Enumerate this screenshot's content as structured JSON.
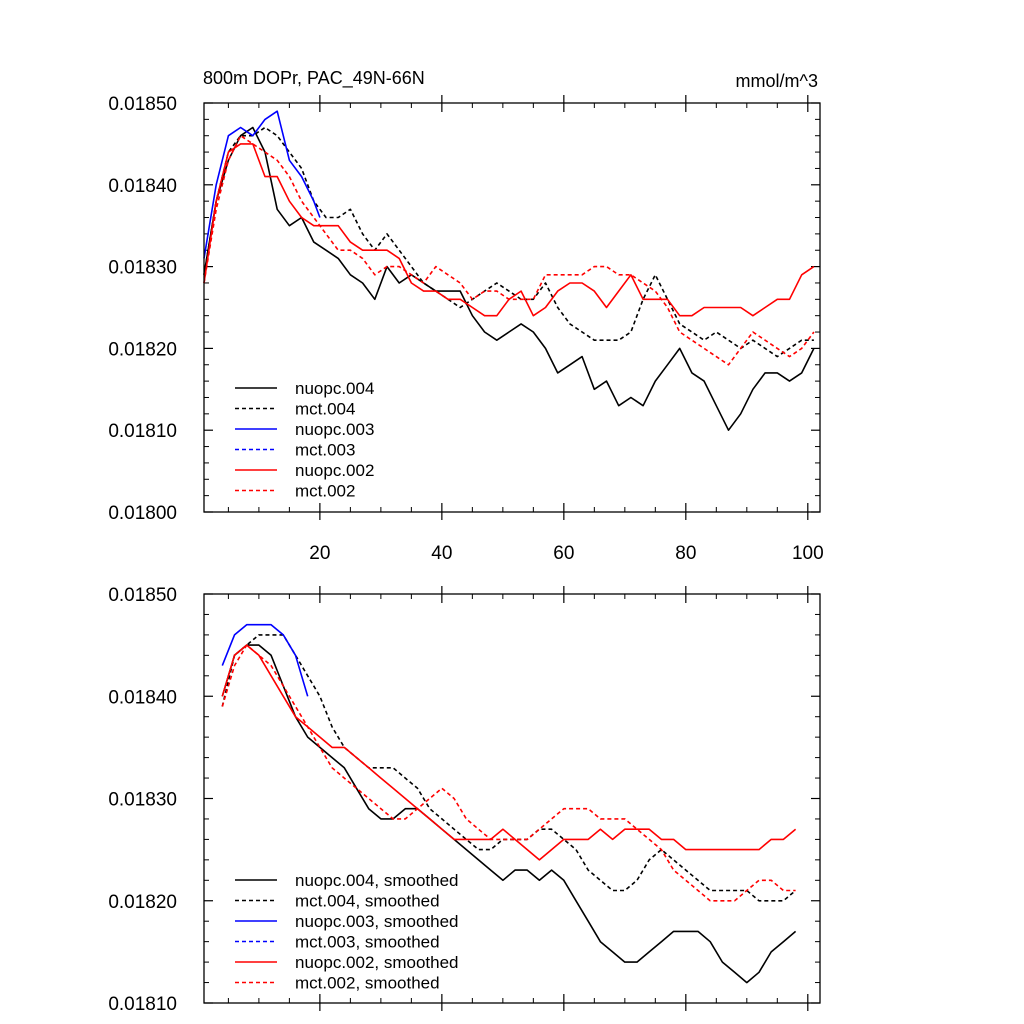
{
  "chart_data": [
    {
      "type": "line",
      "title": "800m DOPr, PAC_49N-66N",
      "units": "mmol/m^3",
      "xlim": [
        1,
        102
      ],
      "ylim": [
        0.018,
        0.0185
      ],
      "x_tick_labels": [
        "20",
        "40",
        "60",
        "80",
        "100"
      ],
      "y_tick_labels": [
        "0.01800",
        "0.01810",
        "0.01820",
        "0.01830",
        "0.01840",
        "0.01850"
      ],
      "series": [
        {
          "name": "nuopc.004",
          "color": "#000000",
          "dash": false,
          "x": [
            1,
            3,
            5,
            7,
            9,
            11,
            13,
            15,
            17,
            19,
            21,
            23,
            25,
            27,
            29,
            31,
            33,
            35,
            37,
            39,
            41,
            43,
            45,
            47,
            49,
            51,
            53,
            55,
            57,
            59,
            61,
            63,
            65,
            67,
            69,
            71,
            73,
            75,
            77,
            79,
            81,
            83,
            85,
            87,
            89,
            91,
            93,
            95,
            97,
            99,
            101
          ],
          "y": [
            0.01829,
            0.01838,
            0.01843,
            0.01846,
            0.01847,
            0.01844,
            0.01837,
            0.01835,
            0.01836,
            0.01833,
            0.01832,
            0.01831,
            0.01829,
            0.01828,
            0.01826,
            0.0183,
            0.01828,
            0.01829,
            0.01828,
            0.01827,
            0.01827,
            0.01827,
            0.01824,
            0.01822,
            0.01821,
            0.01822,
            0.01823,
            0.01822,
            0.0182,
            0.01817,
            0.01818,
            0.01819,
            0.01815,
            0.01816,
            0.01813,
            0.01814,
            0.01813,
            0.01816,
            0.01818,
            0.0182,
            0.01817,
            0.01816,
            0.01813,
            0.0181,
            0.01812,
            0.01815,
            0.01817,
            0.01817,
            0.01816,
            0.01817,
            0.0182
          ]
        },
        {
          "name": "mct.004",
          "color": "#000000",
          "dash": true,
          "x": [
            1,
            3,
            5,
            7,
            9,
            11,
            13,
            15,
            17,
            19,
            21,
            23,
            25,
            27,
            29,
            31,
            33,
            35,
            37,
            39,
            41,
            43,
            45,
            47,
            49,
            51,
            53,
            55,
            57,
            59,
            61,
            63,
            65,
            67,
            69,
            71,
            73,
            75,
            77,
            79,
            81,
            83,
            85,
            87,
            89,
            91,
            93,
            95,
            97,
            99,
            101
          ],
          "y": [
            0.01829,
            0.01838,
            0.01844,
            0.01846,
            0.01846,
            0.01847,
            0.01846,
            0.01844,
            0.01842,
            0.01838,
            0.01836,
            0.01836,
            0.01837,
            0.01834,
            0.01832,
            0.01834,
            0.01832,
            0.0183,
            0.01828,
            0.01827,
            0.01826,
            0.01825,
            0.01826,
            0.01827,
            0.01828,
            0.01827,
            0.01826,
            0.01826,
            0.01828,
            0.01825,
            0.01823,
            0.01822,
            0.01821,
            0.01821,
            0.01821,
            0.01822,
            0.01826,
            0.01829,
            0.01826,
            0.01823,
            0.01822,
            0.01821,
            0.01822,
            0.01821,
            0.0182,
            0.01821,
            0.0182,
            0.01819,
            0.0182,
            0.01821,
            0.01821
          ]
        },
        {
          "name": "nuopc.003",
          "color": "#0000ff",
          "dash": false,
          "x": [
            1,
            3,
            5,
            7,
            9,
            11,
            13,
            15,
            17,
            19,
            20
          ],
          "y": [
            0.01831,
            0.0184,
            0.01846,
            0.01847,
            0.01846,
            0.01848,
            0.01849,
            0.01843,
            0.01841,
            0.01838,
            0.01836
          ]
        },
        {
          "name": "mct.003",
          "color": "#0000ff",
          "dash": true,
          "x": [],
          "y": []
        },
        {
          "name": "nuopc.002",
          "color": "#ff0000",
          "dash": false,
          "x": [
            1,
            3,
            5,
            7,
            9,
            11,
            13,
            15,
            17,
            19,
            21,
            23,
            25,
            27,
            29,
            31,
            33,
            35,
            37,
            39,
            41,
            43,
            45,
            47,
            49,
            51,
            53,
            55,
            57,
            59,
            61,
            63,
            65,
            67,
            69,
            71,
            73,
            75,
            77,
            79,
            81,
            83,
            85,
            87,
            89,
            91,
            93,
            95,
            97,
            99,
            101
          ],
          "y": [
            0.01828,
            0.01838,
            0.01844,
            0.01845,
            0.01845,
            0.01841,
            0.01841,
            0.01838,
            0.01836,
            0.01835,
            0.01835,
            0.01835,
            0.01833,
            0.01832,
            0.01832,
            0.01832,
            0.01831,
            0.01828,
            0.01827,
            0.01827,
            0.01826,
            0.01826,
            0.01825,
            0.01824,
            0.01824,
            0.01826,
            0.01827,
            0.01824,
            0.01825,
            0.01827,
            0.01828,
            0.01828,
            0.01827,
            0.01825,
            0.01827,
            0.01829,
            0.01826,
            0.01826,
            0.01826,
            0.01824,
            0.01824,
            0.01825,
            0.01825,
            0.01825,
            0.01825,
            0.01824,
            0.01825,
            0.01826,
            0.01826,
            0.01829,
            0.0183
          ]
        },
        {
          "name": "mct.002",
          "color": "#ff0000",
          "dash": true,
          "x": [
            1,
            3,
            5,
            7,
            9,
            11,
            13,
            15,
            17,
            19,
            21,
            23,
            25,
            27,
            29,
            31,
            33,
            35,
            37,
            39,
            41,
            43,
            45,
            47,
            49,
            51,
            53,
            55,
            57,
            59,
            61,
            63,
            65,
            67,
            69,
            71,
            73,
            75,
            77,
            79,
            81,
            83,
            85,
            87,
            89,
            91,
            93,
            95,
            97,
            99,
            101
          ],
          "y": [
            0.01828,
            0.01837,
            0.01843,
            0.01846,
            0.01845,
            0.01844,
            0.01843,
            0.01841,
            0.01838,
            0.01836,
            0.01834,
            0.01832,
            0.01832,
            0.01831,
            0.01829,
            0.0183,
            0.0183,
            0.01829,
            0.01828,
            0.0183,
            0.01829,
            0.01828,
            0.01826,
            0.01827,
            0.01827,
            0.01826,
            0.01826,
            0.01826,
            0.01829,
            0.01829,
            0.01829,
            0.01829,
            0.0183,
            0.0183,
            0.01829,
            0.01829,
            0.01828,
            0.01827,
            0.01825,
            0.01822,
            0.01821,
            0.0182,
            0.01819,
            0.01818,
            0.0182,
            0.01822,
            0.01821,
            0.0182,
            0.01819,
            0.0182,
            0.01822
          ]
        }
      ]
    },
    {
      "type": "line",
      "xlim": [
        1,
        102
      ],
      "ylim": [
        0.0181,
        0.0185
      ],
      "x_tick_labels": [],
      "y_tick_labels": [
        "0.01810",
        "0.01820",
        "0.01830",
        "0.01840",
        "0.01850"
      ],
      "series": [
        {
          "name": "nuopc.004, smoothed",
          "color": "#000000",
          "dash": false,
          "x": [
            4,
            6,
            8,
            10,
            12,
            14,
            16,
            18,
            20,
            22,
            24,
            26,
            28,
            30,
            32,
            34,
            36,
            38,
            40,
            42,
            44,
            46,
            48,
            50,
            52,
            54,
            56,
            58,
            60,
            62,
            64,
            66,
            68,
            70,
            72,
            74,
            76,
            78,
            80,
            82,
            84,
            86,
            88,
            90,
            92,
            94,
            96,
            98
          ],
          "y": [
            0.0184,
            0.01844,
            0.01845,
            0.01845,
            0.01844,
            0.01841,
            0.01838,
            0.01836,
            0.01835,
            0.01834,
            0.01833,
            0.01831,
            0.01829,
            0.01828,
            0.01828,
            0.01829,
            0.01829,
            0.01828,
            0.01827,
            0.01826,
            0.01825,
            0.01824,
            0.01823,
            0.01822,
            0.01823,
            0.01823,
            0.01822,
            0.01823,
            0.01822,
            0.0182,
            0.01818,
            0.01816,
            0.01815,
            0.01814,
            0.01814,
            0.01815,
            0.01816,
            0.01817,
            0.01817,
            0.01817,
            0.01816,
            0.01814,
            0.01813,
            0.01812,
            0.01813,
            0.01815,
            0.01816,
            0.01817
          ]
        },
        {
          "name": "mct.004, smoothed",
          "color": "#000000",
          "dash": true,
          "x": [
            4,
            6,
            8,
            10,
            12,
            14,
            16,
            18,
            20,
            22,
            24,
            26,
            28,
            30,
            32,
            34,
            36,
            38,
            40,
            42,
            44,
            46,
            48,
            50,
            52,
            54,
            56,
            58,
            60,
            62,
            64,
            66,
            68,
            70,
            72,
            74,
            76,
            78,
            80,
            82,
            84,
            86,
            88,
            90,
            92,
            94,
            96,
            98
          ],
          "y": [
            0.01839,
            0.01844,
            0.01845,
            0.01846,
            0.01846,
            0.01846,
            0.01844,
            0.01842,
            0.0184,
            0.01837,
            0.01835,
            0.01834,
            0.01833,
            0.01833,
            0.01833,
            0.01832,
            0.01831,
            0.01829,
            0.01828,
            0.01827,
            0.01826,
            0.01825,
            0.01825,
            0.01826,
            0.01826,
            0.01826,
            0.01827,
            0.01827,
            0.01826,
            0.01825,
            0.01823,
            0.01822,
            0.01821,
            0.01821,
            0.01822,
            0.01824,
            0.01825,
            0.01824,
            0.01823,
            0.01822,
            0.01821,
            0.01821,
            0.01821,
            0.01821,
            0.0182,
            0.0182,
            0.0182,
            0.01821
          ]
        },
        {
          "name": "nuopc.003, smoothed",
          "color": "#0000ff",
          "dash": false,
          "x": [
            4,
            6,
            8,
            10,
            12,
            14,
            16,
            18
          ],
          "y": [
            0.01843,
            0.01846,
            0.01847,
            0.01847,
            0.01847,
            0.01846,
            0.01844,
            0.0184
          ]
        },
        {
          "name": "mct.003, smoothed",
          "color": "#0000ff",
          "dash": true,
          "x": [],
          "y": []
        },
        {
          "name": "nuopc.002, smoothed",
          "color": "#ff0000",
          "dash": false,
          "x": [
            4,
            6,
            8,
            10,
            12,
            14,
            16,
            18,
            20,
            22,
            24,
            26,
            28,
            30,
            32,
            34,
            36,
            38,
            40,
            42,
            44,
            46,
            48,
            50,
            52,
            54,
            56,
            58,
            60,
            62,
            64,
            66,
            68,
            70,
            72,
            74,
            76,
            78,
            80,
            82,
            84,
            86,
            88,
            90,
            92,
            94,
            96,
            98
          ],
          "y": [
            0.0184,
            0.01844,
            0.01845,
            0.01844,
            0.01842,
            0.0184,
            0.01838,
            0.01837,
            0.01836,
            0.01835,
            0.01835,
            0.01834,
            0.01833,
            0.01832,
            0.01831,
            0.0183,
            0.01829,
            0.01828,
            0.01827,
            0.01826,
            0.01826,
            0.01826,
            0.01826,
            0.01827,
            0.01826,
            0.01825,
            0.01824,
            0.01825,
            0.01826,
            0.01826,
            0.01826,
            0.01827,
            0.01826,
            0.01827,
            0.01827,
            0.01827,
            0.01826,
            0.01826,
            0.01825,
            0.01825,
            0.01825,
            0.01825,
            0.01825,
            0.01825,
            0.01825,
            0.01826,
            0.01826,
            0.01827
          ]
        },
        {
          "name": "mct.002, smoothed",
          "color": "#ff0000",
          "dash": true,
          "x": [
            4,
            6,
            8,
            10,
            12,
            14,
            16,
            18,
            20,
            22,
            24,
            26,
            28,
            30,
            32,
            34,
            36,
            38,
            40,
            42,
            44,
            46,
            48,
            50,
            52,
            54,
            56,
            58,
            60,
            62,
            64,
            66,
            68,
            70,
            72,
            74,
            76,
            78,
            80,
            82,
            84,
            86,
            88,
            90,
            92,
            94,
            96,
            98
          ],
          "y": [
            0.01839,
            0.01843,
            0.01845,
            0.01844,
            0.01843,
            0.01841,
            0.01839,
            0.01837,
            0.01835,
            0.01833,
            0.01832,
            0.01831,
            0.0183,
            0.01829,
            0.01828,
            0.01828,
            0.01829,
            0.0183,
            0.01831,
            0.0183,
            0.01828,
            0.01827,
            0.01826,
            0.01826,
            0.01826,
            0.01826,
            0.01827,
            0.01828,
            0.01829,
            0.01829,
            0.01829,
            0.01828,
            0.01828,
            0.01828,
            0.01827,
            0.01826,
            0.01825,
            0.01823,
            0.01822,
            0.01821,
            0.0182,
            0.0182,
            0.0182,
            0.01821,
            0.01822,
            0.01822,
            0.01821,
            0.01821
          ]
        }
      ]
    }
  ]
}
